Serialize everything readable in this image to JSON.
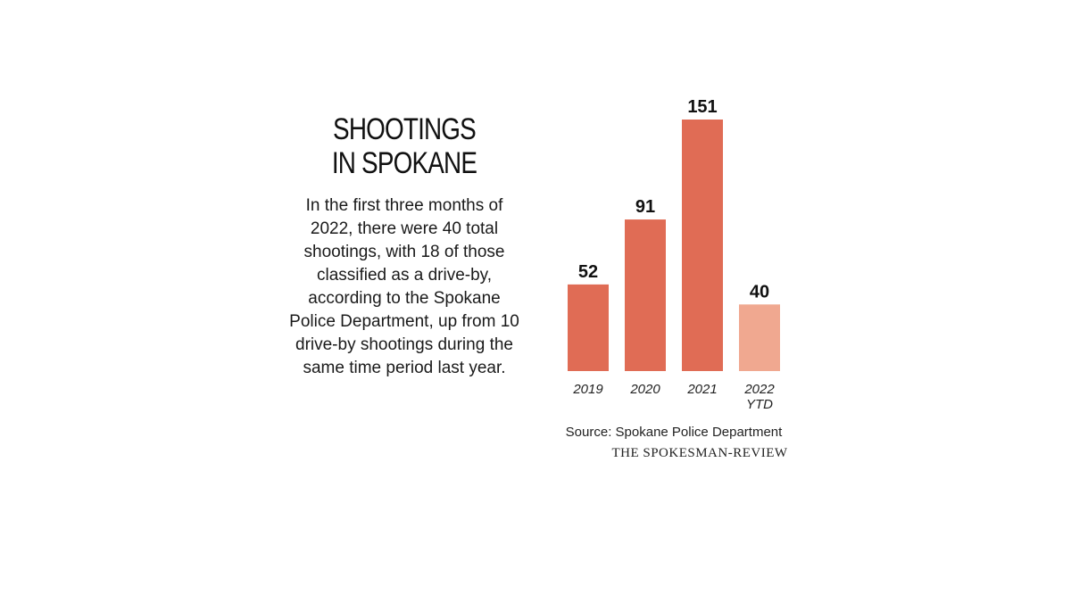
{
  "chart_data": {
    "type": "bar",
    "title": "SHOOTINGS IN SPOKANE",
    "title_lines": [
      "SHOOTINGS",
      "IN SPOKANE"
    ],
    "description": "In the first three months of 2022, there were 40 total shootings, with 18 of those classified as a drive-by, according to the Spokane Police Department, up from 10 drive-by shootings during the same time period last year.",
    "categories": [
      {
        "lines": [
          "2019"
        ]
      },
      {
        "lines": [
          "2020"
        ]
      },
      {
        "lines": [
          "2021"
        ]
      },
      {
        "lines": [
          "2022",
          "YTD"
        ]
      }
    ],
    "values": [
      52,
      91,
      151,
      40
    ],
    "colors": [
      "#e06c55",
      "#e06c55",
      "#e06c55",
      "#f0a890"
    ],
    "xlabel": "",
    "ylabel": "",
    "ylim": [
      0,
      151
    ],
    "grid": false,
    "source": "Source: Spokane Police Department",
    "publisher": "THE SPOKESMAN-REVIEW"
  }
}
